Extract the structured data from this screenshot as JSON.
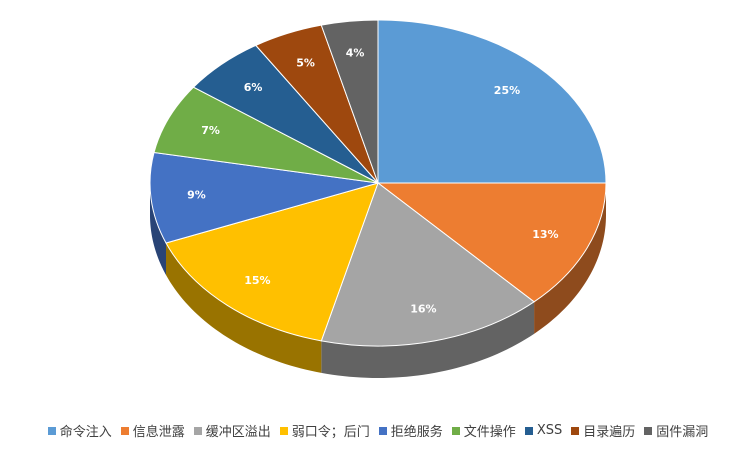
{
  "chart_data": {
    "type": "pie",
    "categories": [
      "命令注入",
      "信息泄露",
      "缓冲区溢出",
      "弱口令；后门",
      "拒绝服务",
      "文件操作",
      "XSS",
      "目录遍历",
      "固件漏洞"
    ],
    "values": [
      25,
      13,
      16,
      15,
      9,
      7,
      6,
      5,
      4
    ],
    "value_labels": [
      "25%",
      "13%",
      "16%",
      "15%",
      "9%",
      "7%",
      "6%",
      "5%",
      "4%"
    ],
    "colors": [
      "#5b9bd5",
      "#ed7d31",
      "#a5a5a5",
      "#ffc000",
      "#4472c4",
      "#70ad47",
      "#255e91",
      "#9e480e",
      "#636363"
    ],
    "legend": "bottom"
  }
}
